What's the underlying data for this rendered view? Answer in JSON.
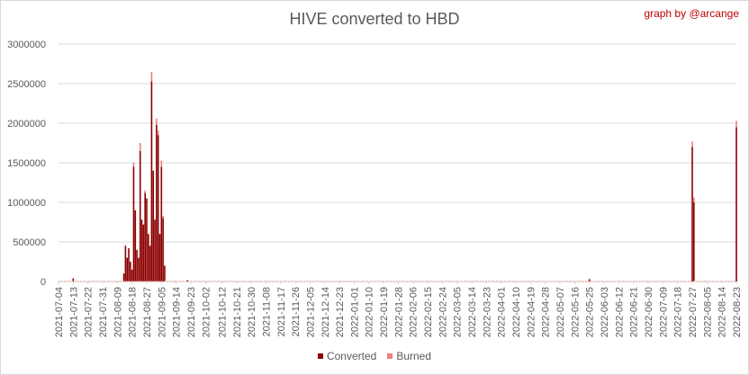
{
  "title": "HIVE converted to HBD",
  "credit": "graph by @arcange",
  "colors": {
    "converted": "#8b0000",
    "burned": "#f08080",
    "grid": "#d9d9d9",
    "text": "#595959"
  },
  "chart_data": {
    "type": "bar",
    "stacked": true,
    "title": "HIVE converted to HBD",
    "xlabel": "",
    "ylabel": "",
    "ylim": [
      0,
      3000000
    ],
    "yticks": [
      0,
      500000,
      1000000,
      1500000,
      2000000,
      2500000,
      3000000
    ],
    "grid": true,
    "legend_position": "bottom",
    "x_start": "2021-07-04",
    "x_end": "2022-08-23",
    "tick_labels": [
      "2021-07-04",
      "2021-07-13",
      "2021-07-22",
      "2021-07-31",
      "2021-08-09",
      "2021-08-18",
      "2021-08-27",
      "2021-09-05",
      "2021-09-14",
      "2021-09-23",
      "2021-10-02",
      "2021-10-12",
      "2021-10-21",
      "2021-10-30",
      "2021-11-08",
      "2021-11-17",
      "2021-11-26",
      "2021-12-05",
      "2021-12-14",
      "2021-12-23",
      "2022-01-01",
      "2022-01-10",
      "2022-01-19",
      "2022-01-28",
      "2022-02-06",
      "2022-02-15",
      "2022-02-24",
      "2022-03-05",
      "2022-03-14",
      "2022-03-23",
      "2022-04-01",
      "2022-04-10",
      "2022-04-19",
      "2022-04-28",
      "2022-05-07",
      "2022-05-16",
      "2022-05-25",
      "2022-06-03",
      "2022-06-12",
      "2022-06-21",
      "2022-06-30",
      "2022-07-09",
      "2022-07-18",
      "2022-07-27",
      "2022-08-05",
      "2022-08-14",
      "2022-08-23"
    ],
    "series": [
      {
        "name": "Converted",
        "color": "#8b0000",
        "points": [
          [
            "2021-07-13",
            40000
          ],
          [
            "2021-08-13",
            100000
          ],
          [
            "2021-08-14",
            450000
          ],
          [
            "2021-08-15",
            300000
          ],
          [
            "2021-08-16",
            420000
          ],
          [
            "2021-08-17",
            250000
          ],
          [
            "2021-08-18",
            150000
          ],
          [
            "2021-08-19",
            1450000
          ],
          [
            "2021-08-20",
            900000
          ],
          [
            "2021-08-21",
            400000
          ],
          [
            "2021-08-22",
            300000
          ],
          [
            "2021-08-23",
            1650000
          ],
          [
            "2021-08-24",
            780000
          ],
          [
            "2021-08-25",
            720000
          ],
          [
            "2021-08-26",
            1120000
          ],
          [
            "2021-08-27",
            1050000
          ],
          [
            "2021-08-28",
            600000
          ],
          [
            "2021-08-29",
            450000
          ],
          [
            "2021-08-30",
            2530000
          ],
          [
            "2021-08-31",
            1400000
          ],
          [
            "2021-09-01",
            780000
          ],
          [
            "2021-09-02",
            1980000
          ],
          [
            "2021-09-03",
            1850000
          ],
          [
            "2021-09-04",
            600000
          ],
          [
            "2021-09-05",
            1450000
          ],
          [
            "2021-09-06",
            800000
          ],
          [
            "2021-09-07",
            200000
          ],
          [
            "2021-09-21",
            15000
          ],
          [
            "2022-05-25",
            30000
          ],
          [
            "2022-07-27",
            1700000
          ],
          [
            "2022-07-28",
            1000000
          ],
          [
            "2022-08-23",
            1950000
          ]
        ]
      },
      {
        "name": "Burned",
        "color": "#f08080",
        "points": [
          [
            "2021-08-14",
            10000
          ],
          [
            "2021-08-19",
            50000
          ],
          [
            "2021-08-23",
            100000
          ],
          [
            "2021-08-26",
            30000
          ],
          [
            "2021-08-30",
            120000
          ],
          [
            "2021-09-02",
            80000
          ],
          [
            "2021-09-03",
            60000
          ],
          [
            "2021-09-05",
            80000
          ],
          [
            "2021-09-06",
            30000
          ],
          [
            "2022-07-27",
            70000
          ],
          [
            "2022-07-28",
            60000
          ],
          [
            "2022-08-23",
            80000
          ]
        ]
      }
    ]
  },
  "legend": [
    {
      "label": "Converted",
      "color": "#8b0000"
    },
    {
      "label": "Burned",
      "color": "#f08080"
    }
  ]
}
